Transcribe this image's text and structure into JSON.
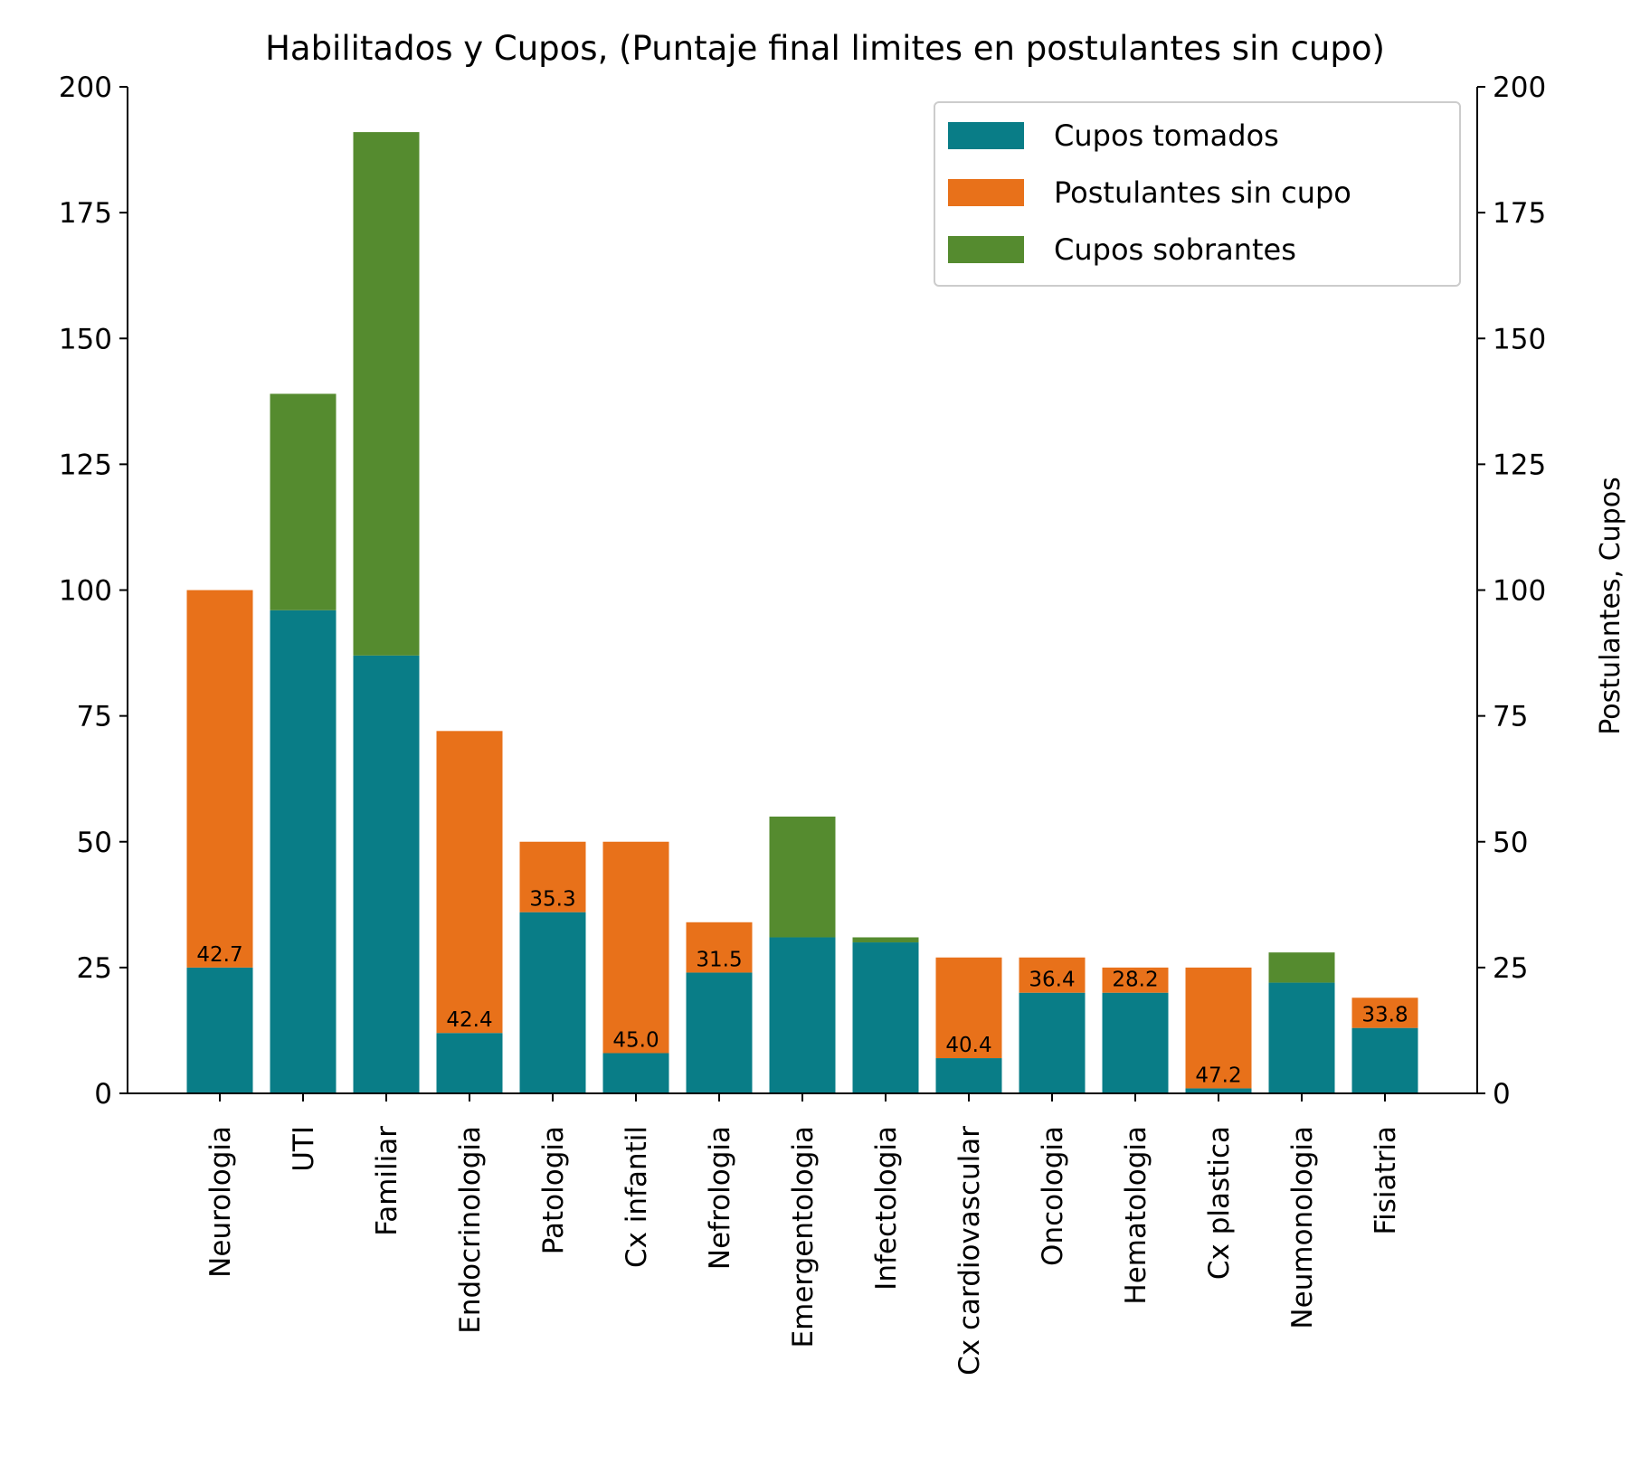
{
  "chart_data": {
    "type": "bar",
    "stacked": true,
    "title": "Habilitados y Cupos, (Puntaje final limites en postulantes sin cupo)",
    "xlabel": "",
    "ylabel_left": "",
    "ylabel_right": "Postulantes, Cupos",
    "ylim": [
      0,
      200
    ],
    "yticks": [
      0,
      25,
      50,
      75,
      100,
      125,
      150,
      175,
      200
    ],
    "categories": [
      "Neurologia",
      "UTI",
      "Familiar",
      "Endocrinologia",
      "Patologia",
      "Cx infantil",
      "Nefrologia",
      "Emergentologia",
      "Infectologia",
      "Cx cardiovascular",
      "Oncologia",
      "Hematologia",
      "Cx plastica",
      "Neumonologia",
      "Fisiatria"
    ],
    "series": [
      {
        "name": "Cupos tomados",
        "color": "#097d87",
        "values": [
          25,
          96,
          87,
          12,
          36,
          8,
          24,
          31,
          30,
          7,
          20,
          20,
          1,
          22,
          13
        ]
      },
      {
        "name": "Postulantes sin cupo",
        "color": "#e8711a",
        "values": [
          75,
          0,
          0,
          60,
          14,
          42,
          10,
          0,
          0,
          20,
          7,
          5,
          24,
          0,
          6
        ]
      },
      {
        "name": "Cupos sobrantes",
        "color": "#558b2f",
        "values": [
          0,
          43,
          104,
          0,
          0,
          0,
          0,
          24,
          1,
          0,
          0,
          0,
          0,
          6,
          0
        ]
      }
    ],
    "bar_labels": [
      "42.7",
      null,
      null,
      "42.4",
      "35.3",
      "45.0",
      "31.5",
      null,
      null,
      "40.4",
      "36.4",
      "28.2",
      "47.2",
      null,
      "33.8"
    ],
    "legend_position": "top-right",
    "grid": false
  }
}
